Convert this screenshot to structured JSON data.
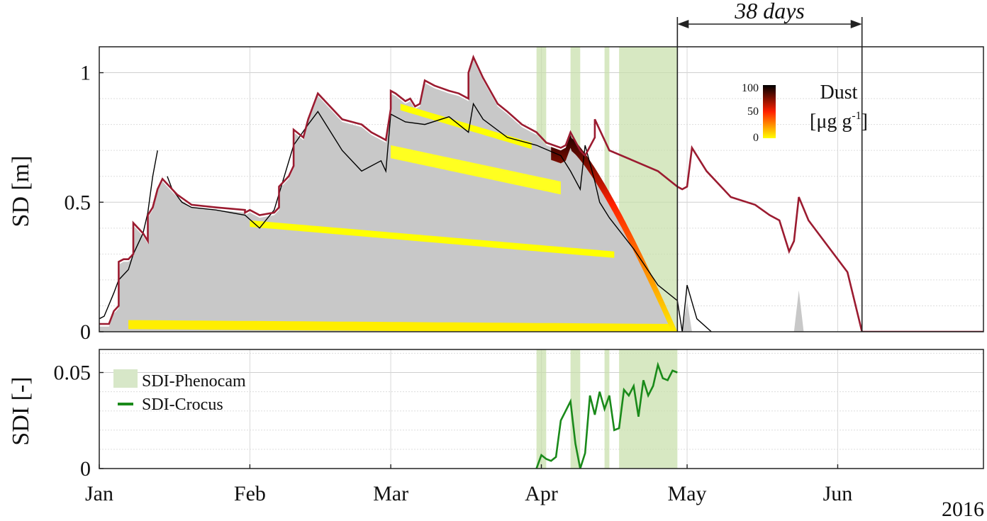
{
  "chart_data": [
    {
      "type": "area",
      "ylabel": "SD [m]",
      "ylim": [
        0,
        1.1
      ],
      "yticks": [
        0,
        0.5,
        1
      ],
      "xlim": [
        "2016-01-01",
        "2016-07-01"
      ],
      "xticks": [
        {
          "date": "2016-01-01",
          "label": "Jan"
        },
        {
          "date": "2016-02-01",
          "label": "Feb"
        },
        {
          "date": "2016-03-01",
          "label": "Mar"
        },
        {
          "date": "2016-04-01",
          "label": "Apr"
        },
        {
          "date": "2016-05-01",
          "label": "May"
        },
        {
          "date": "2016-06-01",
          "label": "Jun"
        }
      ],
      "year_label": "2016",
      "annotation": {
        "text": "38 days",
        "from": "2016-04-29",
        "to": "2016-06-06"
      },
      "colorbar": {
        "title": "Dust",
        "unit_main": "[μg g",
        "unit_sup": "-1",
        "unit_end": "]",
        "ticks": [
          "100",
          "50",
          "0"
        ],
        "colors": [
          "#ffff00",
          "#ff2000",
          "#000000"
        ]
      },
      "phenocam_periods": [
        {
          "start": "2016-03-31",
          "end": "2016-04-02"
        },
        {
          "start": "2016-04-07",
          "end": "2016-04-09"
        },
        {
          "start": "2016-04-14",
          "end": "2016-04-15"
        },
        {
          "start": "2016-04-17",
          "end": "2016-04-29"
        }
      ],
      "series": [
        {
          "name": "observed",
          "color": "#9b1b30",
          "x": [
            "2016-01-01",
            "2016-01-02",
            "2016-01-03",
            "2016-01-04",
            "2016-01-05",
            "2016-01-05",
            "2016-01-06",
            "2016-01-07",
            "2016-01-08",
            "2016-01-08",
            "2016-01-10",
            "2016-01-11",
            "2016-01-11",
            "2016-01-12",
            "2016-01-13",
            "2016-01-14",
            "2016-01-17",
            "2016-01-20",
            "2016-01-25",
            "2016-01-31",
            "2016-01-31",
            "2016-02-01",
            "2016-02-03",
            "2016-02-06",
            "2016-02-07",
            "2016-02-07",
            "2016-02-09",
            "2016-02-10",
            "2016-02-10",
            "2016-02-12",
            "2016-02-13",
            "2016-02-15",
            "2016-02-20",
            "2016-02-24",
            "2016-02-26",
            "2016-02-28",
            "2016-02-29",
            "2016-03-01",
            "2016-03-01",
            "2016-03-02",
            "2016-03-04",
            "2016-03-05",
            "2016-03-06",
            "2016-03-07",
            "2016-03-08",
            "2016-03-10",
            "2016-03-13",
            "2016-03-15",
            "2016-03-17",
            "2016-03-17",
            "2016-03-18",
            "2016-03-20",
            "2016-03-23",
            "2016-03-25",
            "2016-03-28",
            "2016-03-31",
            "2016-04-02",
            "2016-04-05",
            "2016-04-06",
            "2016-04-07",
            "2016-04-09",
            "2016-04-10",
            "2016-04-12",
            "2016-04-12",
            "2016-04-13",
            "2016-04-15",
            "2016-04-20",
            "2016-04-25",
            "2016-04-29",
            "2016-04-30",
            "2016-05-01",
            "2016-05-02",
            "2016-05-05",
            "2016-05-10",
            "2016-05-15",
            "2016-05-18",
            "2016-05-20",
            "2016-05-22",
            "2016-05-23",
            "2016-05-24",
            "2016-05-26",
            "2016-05-30",
            "2016-06-03",
            "2016-06-06",
            "2016-07-01"
          ],
          "y": [
            0.03,
            0.03,
            0.03,
            0.08,
            0.1,
            0.27,
            0.28,
            0.28,
            0.3,
            0.42,
            0.38,
            0.35,
            0.45,
            0.48,
            0.55,
            0.59,
            0.53,
            0.49,
            0.48,
            0.47,
            0.46,
            0.47,
            0.45,
            0.46,
            0.48,
            0.56,
            0.6,
            0.64,
            0.78,
            0.75,
            0.82,
            0.92,
            0.82,
            0.8,
            0.77,
            0.75,
            0.74,
            0.86,
            0.93,
            0.92,
            0.89,
            0.9,
            0.87,
            0.88,
            0.97,
            0.95,
            0.93,
            0.92,
            0.9,
            1.0,
            1.06,
            0.98,
            0.88,
            0.85,
            0.8,
            0.77,
            0.73,
            0.71,
            0.72,
            0.77,
            0.7,
            0.68,
            0.75,
            0.82,
            0.78,
            0.7,
            0.66,
            0.62,
            0.56,
            0.55,
            0.56,
            0.71,
            0.62,
            0.52,
            0.49,
            0.45,
            0.43,
            0.31,
            0.35,
            0.52,
            0.43,
            0.33,
            0.23,
            0.0,
            0.0
          ]
        },
        {
          "name": "simulated",
          "color": "#000000",
          "x": [
            "2016-01-01",
            "2016-01-02",
            "2016-01-04",
            "2016-01-05",
            "2016-01-07",
            "2016-01-08",
            "2016-01-10",
            "2016-01-11",
            "2016-01-12",
            "2016-01-13",
            "2016-01-14",
            "2016-01-15",
            "2016-01-16",
            "2016-01-18",
            "2016-01-20",
            "2016-01-25",
            "2016-01-31",
            "2016-02-03",
            "2016-02-06",
            "2016-02-10",
            "2016-02-13",
            "2016-02-15",
            "2016-02-20",
            "2016-02-24",
            "2016-02-28",
            "2016-02-29",
            "2016-03-01",
            "2016-03-04",
            "2016-03-08",
            "2016-03-13",
            "2016-03-17",
            "2016-03-18",
            "2016-03-20",
            "2016-03-25",
            "2016-03-31",
            "2016-04-05",
            "2016-04-07",
            "2016-04-09",
            "2016-04-10",
            "2016-04-12",
            "2016-04-13",
            "2016-04-15",
            "2016-04-20",
            "2016-04-25",
            "2016-04-29",
            "2016-04-30",
            "2016-05-01",
            "2016-05-03",
            "2016-05-06"
          ],
          "y": [
            0.05,
            0.06,
            0.15,
            0.2,
            0.24,
            0.3,
            0.38,
            0.46,
            0.6,
            0.7,
            null,
            0.6,
            0.55,
            0.5,
            0.48,
            0.47,
            0.45,
            0.4,
            0.47,
            0.72,
            0.8,
            0.85,
            0.7,
            0.62,
            0.66,
            0.62,
            0.84,
            0.81,
            0.8,
            0.83,
            0.77,
            0.88,
            0.82,
            0.75,
            0.72,
            0.68,
            0.62,
            0.55,
            0.72,
            0.58,
            0.5,
            0.44,
            0.32,
            0.18,
            0.12,
            0.0,
            0.18,
            0.05,
            0.0
          ]
        }
      ]
    },
    {
      "type": "line",
      "ylabel": "SDI [-]",
      "ylim": [
        0,
        0.062
      ],
      "yticks": [
        0,
        0.05
      ],
      "legend": {
        "placement": "top-left",
        "entries": [
          "SDI-Phenocam",
          "SDI-Crocus"
        ]
      },
      "series": [
        {
          "name": "SDI-Crocus",
          "color": "#1a8a1a",
          "x": [
            "2016-03-31",
            "2016-04-01",
            "2016-04-02",
            "2016-04-03",
            "2016-04-04",
            "2016-04-05",
            "2016-04-07",
            "2016-04-08",
            "2016-04-09",
            "2016-04-10",
            "2016-04-11",
            "2016-04-12",
            "2016-04-13",
            "2016-04-14",
            "2016-04-15",
            "2016-04-16",
            "2016-04-17",
            "2016-04-18",
            "2016-04-19",
            "2016-04-20",
            "2016-04-21",
            "2016-04-22",
            "2016-04-23",
            "2016-04-24",
            "2016-04-25",
            "2016-04-26",
            "2016-04-27",
            "2016-04-28",
            "2016-04-29"
          ],
          "y": [
            0.0,
            0.007,
            0.005,
            0.004,
            0.006,
            0.025,
            0.035,
            0.013,
            0.0,
            0.008,
            0.038,
            0.028,
            0.04,
            0.031,
            0.038,
            0.02,
            0.021,
            0.041,
            0.038,
            0.043,
            0.027,
            0.046,
            0.038,
            0.043,
            0.054,
            0.047,
            0.046,
            0.051,
            0.05
          ]
        }
      ]
    }
  ]
}
